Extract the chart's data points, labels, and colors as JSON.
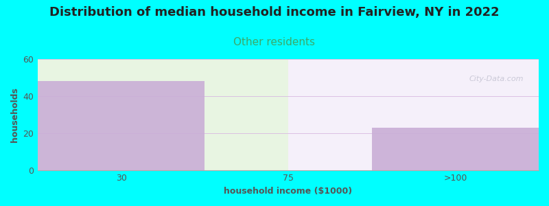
{
  "title": "Distribution of median household income in Fairview, NY in 2022",
  "subtitle": "Other residents",
  "xlabel": "household income ($1000)",
  "ylabel": "households",
  "categories": [
    "30",
    "75",
    ">100"
  ],
  "values": [
    48,
    0,
    23
  ],
  "bar_color": "#c9aed6",
  "background_color": "#00ffff",
  "plot_bg_color_left": "#e8f5e2",
  "plot_bg_color_right": "#f5f0fa",
  "ylim": [
    0,
    60
  ],
  "yticks": [
    0,
    20,
    40,
    60
  ],
  "title_fontsize": 13,
  "subtitle_fontsize": 11,
  "subtitle_color": "#3aaa6a",
  "axis_label_fontsize": 9,
  "tick_fontsize": 9,
  "watermark": "City-Data.com"
}
